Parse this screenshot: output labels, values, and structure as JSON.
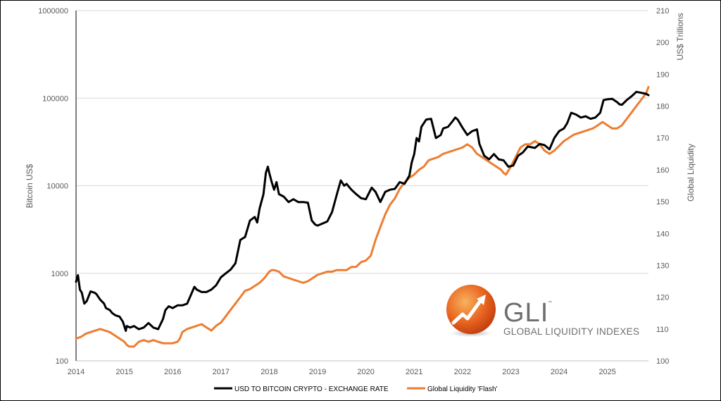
{
  "chart_data": {
    "type": "line",
    "title": "",
    "xlabel": "",
    "ylabel_left": "Bitcoin US$",
    "ylabel_right": "Global Liquidity",
    "ylabel_right_units": "US$ Trillions",
    "y_left_scale": "log",
    "y_left_ticks": [
      100,
      1000,
      10000,
      100000,
      1000000
    ],
    "y_left_tick_labels": [
      "100",
      "1000",
      "10000",
      "100000",
      "1000000"
    ],
    "y_right_ticks": [
      100,
      110,
      120,
      130,
      140,
      150,
      160,
      170,
      180,
      190,
      200,
      210
    ],
    "y_right_tick_labels": [
      "100",
      "110",
      "120",
      "130",
      "140",
      "150",
      "160",
      "170",
      "180",
      "190",
      "200",
      "210"
    ],
    "ylim_left": [
      100,
      1000000
    ],
    "ylim_right": [
      100,
      210
    ],
    "x_ticks": [
      2014,
      2015,
      2016,
      2017,
      2018,
      2019,
      2020,
      2021,
      2022,
      2023,
      2024,
      2025
    ],
    "x_tick_labels": [
      "2014",
      "2015",
      "2016",
      "2017",
      "2018",
      "2019",
      "2020",
      "2021",
      "2022",
      "2023",
      "2024",
      "2025"
    ],
    "xlim": [
      2014,
      2025.85
    ],
    "grid": "horizontal",
    "legend_position": "bottom",
    "series": [
      {
        "name": "USD TO BITCOIN CRYPTO - EXCHANGE RATE",
        "axis": "left",
        "color": "#000000",
        "x": [
          2014.0,
          2014.04,
          2014.08,
          2014.12,
          2014.17,
          2014.22,
          2014.3,
          2014.38,
          2014.42,
          2014.5,
          2014.58,
          2014.62,
          2014.7,
          2014.75,
          2014.82,
          2014.9,
          2014.97,
          2015.03,
          2015.05,
          2015.12,
          2015.2,
          2015.3,
          2015.4,
          2015.5,
          2015.6,
          2015.7,
          2015.8,
          2015.85,
          2015.92,
          2016.0,
          2016.1,
          2016.2,
          2016.3,
          2016.45,
          2016.5,
          2016.6,
          2016.7,
          2016.8,
          2016.9,
          2017.0,
          2017.1,
          2017.2,
          2017.3,
          2017.4,
          2017.5,
          2017.6,
          2017.7,
          2017.75,
          2017.8,
          2017.88,
          2017.93,
          2017.97,
          2018.0,
          2018.05,
          2018.1,
          2018.15,
          2018.2,
          2018.3,
          2018.4,
          2018.5,
          2018.6,
          2018.7,
          2018.8,
          2018.88,
          2018.95,
          2019.0,
          2019.1,
          2019.2,
          2019.3,
          2019.4,
          2019.48,
          2019.55,
          2019.6,
          2019.7,
          2019.8,
          2019.9,
          2020.0,
          2020.12,
          2020.2,
          2020.3,
          2020.4,
          2020.5,
          2020.6,
          2020.7,
          2020.8,
          2020.9,
          2020.95,
          2021.0,
          2021.05,
          2021.1,
          2021.15,
          2021.25,
          2021.35,
          2021.45,
          2021.55,
          2021.6,
          2021.7,
          2021.8,
          2021.85,
          2021.9,
          2022.0,
          2022.1,
          2022.2,
          2022.3,
          2022.35,
          2022.45,
          2022.55,
          2022.65,
          2022.75,
          2022.85,
          2022.95,
          2023.05,
          2023.15,
          2023.25,
          2023.35,
          2023.5,
          2023.6,
          2023.7,
          2023.8,
          2023.9,
          2024.0,
          2024.1,
          2024.17,
          2024.25,
          2024.35,
          2024.45,
          2024.55,
          2024.65,
          2024.75,
          2024.85,
          2024.92,
          2025.0,
          2025.1,
          2025.2,
          2025.25,
          2025.3,
          2025.4,
          2025.5,
          2025.6,
          2025.7,
          2025.8,
          2025.85
        ],
        "values": [
          800,
          950,
          650,
          600,
          450,
          480,
          620,
          600,
          580,
          500,
          450,
          400,
          380,
          350,
          330,
          320,
          280,
          220,
          250,
          240,
          250,
          230,
          240,
          270,
          240,
          230,
          300,
          380,
          420,
          400,
          430,
          430,
          450,
          700,
          650,
          610,
          610,
          650,
          730,
          900,
          1000,
          1100,
          1300,
          2400,
          2600,
          4000,
          4400,
          3800,
          5500,
          8000,
          14000,
          16500,
          14000,
          11000,
          9000,
          11000,
          8000,
          7500,
          6500,
          7000,
          6500,
          6500,
          6400,
          4000,
          3600,
          3500,
          3700,
          3900,
          5000,
          8000,
          11500,
          10000,
          10500,
          9000,
          8000,
          7200,
          7000,
          9500,
          8500,
          6500,
          8500,
          9000,
          9200,
          11000,
          10500,
          13000,
          18500,
          23000,
          35000,
          32000,
          47000,
          57000,
          58000,
          35000,
          38000,
          45000,
          47000,
          55000,
          60000,
          57000,
          46000,
          38000,
          42000,
          44000,
          30000,
          22000,
          20000,
          23000,
          20000,
          19500,
          16500,
          17000,
          22000,
          24000,
          28000,
          27000,
          30000,
          29000,
          26000,
          35000,
          42000,
          45000,
          52000,
          68000,
          65000,
          60000,
          62000,
          58000,
          60000,
          68000,
          95000,
          97000,
          98000,
          90000,
          85000,
          84000,
          95000,
          105000,
          118000,
          115000,
          112000,
          108000
        ]
      },
      {
        "name": "Global Liquidity 'Flash'",
        "axis": "right",
        "color": "#ed7d31",
        "x": [
          2014.0,
          2014.1,
          2014.2,
          2014.3,
          2014.4,
          2014.5,
          2014.6,
          2014.7,
          2014.8,
          2014.9,
          2015.0,
          2015.05,
          2015.1,
          2015.2,
          2015.3,
          2015.4,
          2015.5,
          2015.6,
          2015.7,
          2015.8,
          2015.9,
          2016.0,
          2016.1,
          2016.15,
          2016.2,
          2016.3,
          2016.4,
          2016.5,
          2016.6,
          2016.7,
          2016.75,
          2016.8,
          2016.9,
          2017.0,
          2017.1,
          2017.2,
          2017.3,
          2017.4,
          2017.5,
          2017.6,
          2017.7,
          2017.8,
          2017.9,
          2018.0,
          2018.05,
          2018.1,
          2018.2,
          2018.3,
          2018.4,
          2018.5,
          2018.6,
          2018.7,
          2018.8,
          2018.9,
          2019.0,
          2019.1,
          2019.2,
          2019.3,
          2019.4,
          2019.5,
          2019.6,
          2019.7,
          2019.8,
          2019.9,
          2020.0,
          2020.1,
          2020.2,
          2020.3,
          2020.4,
          2020.5,
          2020.6,
          2020.7,
          2020.8,
          2020.9,
          2021.0,
          2021.1,
          2021.2,
          2021.3,
          2021.4,
          2021.5,
          2021.6,
          2021.7,
          2021.8,
          2021.9,
          2022.0,
          2022.1,
          2022.2,
          2022.3,
          2022.4,
          2022.5,
          2022.6,
          2022.7,
          2022.8,
          2022.85,
          2022.9,
          2023.0,
          2023.1,
          2023.2,
          2023.3,
          2023.4,
          2023.5,
          2023.6,
          2023.7,
          2023.8,
          2023.9,
          2024.0,
          2024.1,
          2024.2,
          2024.3,
          2024.4,
          2024.5,
          2024.6,
          2024.7,
          2024.8,
          2024.9,
          2025.0,
          2025.1,
          2025.2,
          2025.3,
          2025.4,
          2025.5,
          2025.6,
          2025.7,
          2025.8,
          2025.85
        ],
        "values": [
          107,
          107.5,
          108.5,
          109,
          109.5,
          110,
          109.5,
          109,
          108,
          107,
          106,
          105,
          104.5,
          104.5,
          106,
          106.5,
          106,
          106.5,
          106,
          105.5,
          105.5,
          105.5,
          106,
          107,
          109,
          110,
          110.5,
          111,
          111.5,
          110.5,
          110,
          109.5,
          111,
          112,
          114,
          116,
          118,
          120,
          122,
          122.5,
          123.5,
          124.5,
          126,
          128,
          128.5,
          128.5,
          128,
          126.5,
          126,
          125.5,
          125,
          124.5,
          125,
          126,
          127,
          127.5,
          128,
          128,
          128.5,
          128.5,
          128.5,
          129.5,
          129.5,
          131,
          131.5,
          133,
          138,
          142,
          146,
          149,
          151,
          154,
          156,
          157.5,
          158.5,
          160,
          161,
          163,
          163.5,
          164,
          165,
          165.5,
          166,
          166.5,
          167,
          168,
          167,
          165,
          164,
          163,
          162,
          161,
          160,
          159,
          158.5,
          161,
          164,
          167,
          168,
          168,
          169,
          168,
          166,
          165,
          166,
          167.5,
          169,
          170,
          171,
          171.5,
          172,
          172.5,
          173,
          174,
          175,
          174,
          173,
          173,
          174,
          176,
          178,
          180,
          182,
          184,
          186
        ]
      }
    ],
    "logo": {
      "text": "GLI",
      "trademark": "™",
      "subtitle": "GLOBAL LIQUIDITY INDEXES"
    }
  }
}
